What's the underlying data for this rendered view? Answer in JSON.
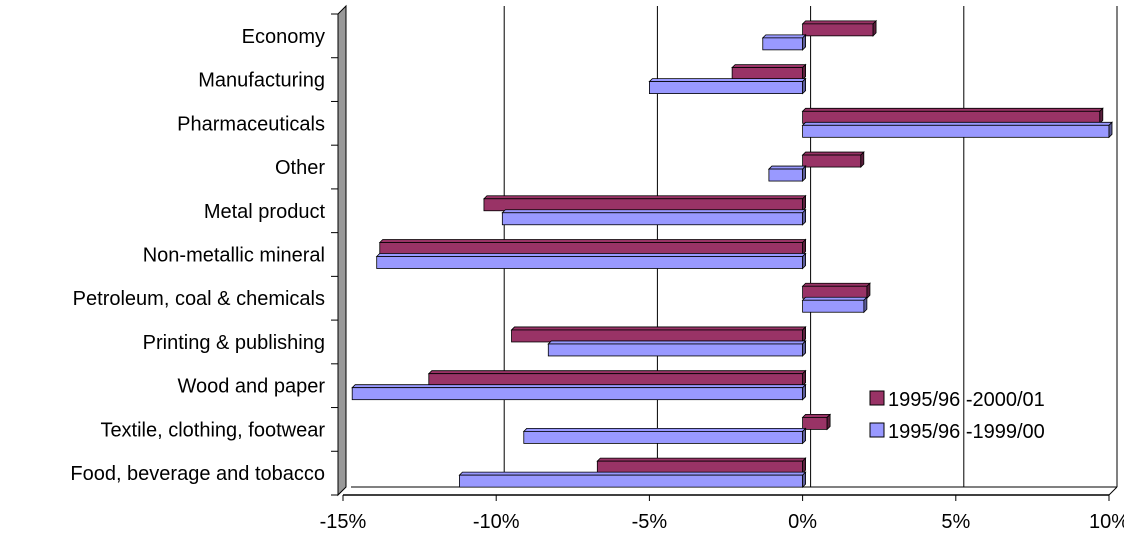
{
  "chart_data": {
    "type": "bar",
    "orientation": "horizontal",
    "title": "",
    "xlabel": "",
    "ylabel": "",
    "categories": [
      "Economy",
      "Manufacturing",
      "Pharmaceuticals",
      "Other",
      "Metal product",
      "Non-metallic mineral",
      "Petroleum, coal & chemicals",
      "Printing & publishing",
      "Wood and paper",
      "Textile, clothing, footwear",
      "Food, beverage and tobacco"
    ],
    "series": [
      {
        "name": "1995/96 -2000/01",
        "color": "#993366",
        "values": [
          2.3,
          -2.3,
          9.7,
          1.9,
          -10.4,
          -13.8,
          2.1,
          -9.5,
          -12.2,
          0.8,
          -6.7
        ]
      },
      {
        "name": "1995/96 -1999/00",
        "color": "#9999ff",
        "values": [
          -1.3,
          -5.0,
          10.0,
          -1.1,
          -9.8,
          -13.9,
          2.0,
          -8.3,
          -14.7,
          -9.1,
          -11.2
        ]
      }
    ],
    "xlim": [
      -15,
      10
    ],
    "xticks": [
      "-15%",
      "-10%",
      "-5%",
      "0%",
      "5%",
      "10%"
    ],
    "xtick_values": [
      -15,
      -10,
      -5,
      0,
      5,
      10
    ],
    "grid": "vertical",
    "legend_position": "bottom-right"
  }
}
